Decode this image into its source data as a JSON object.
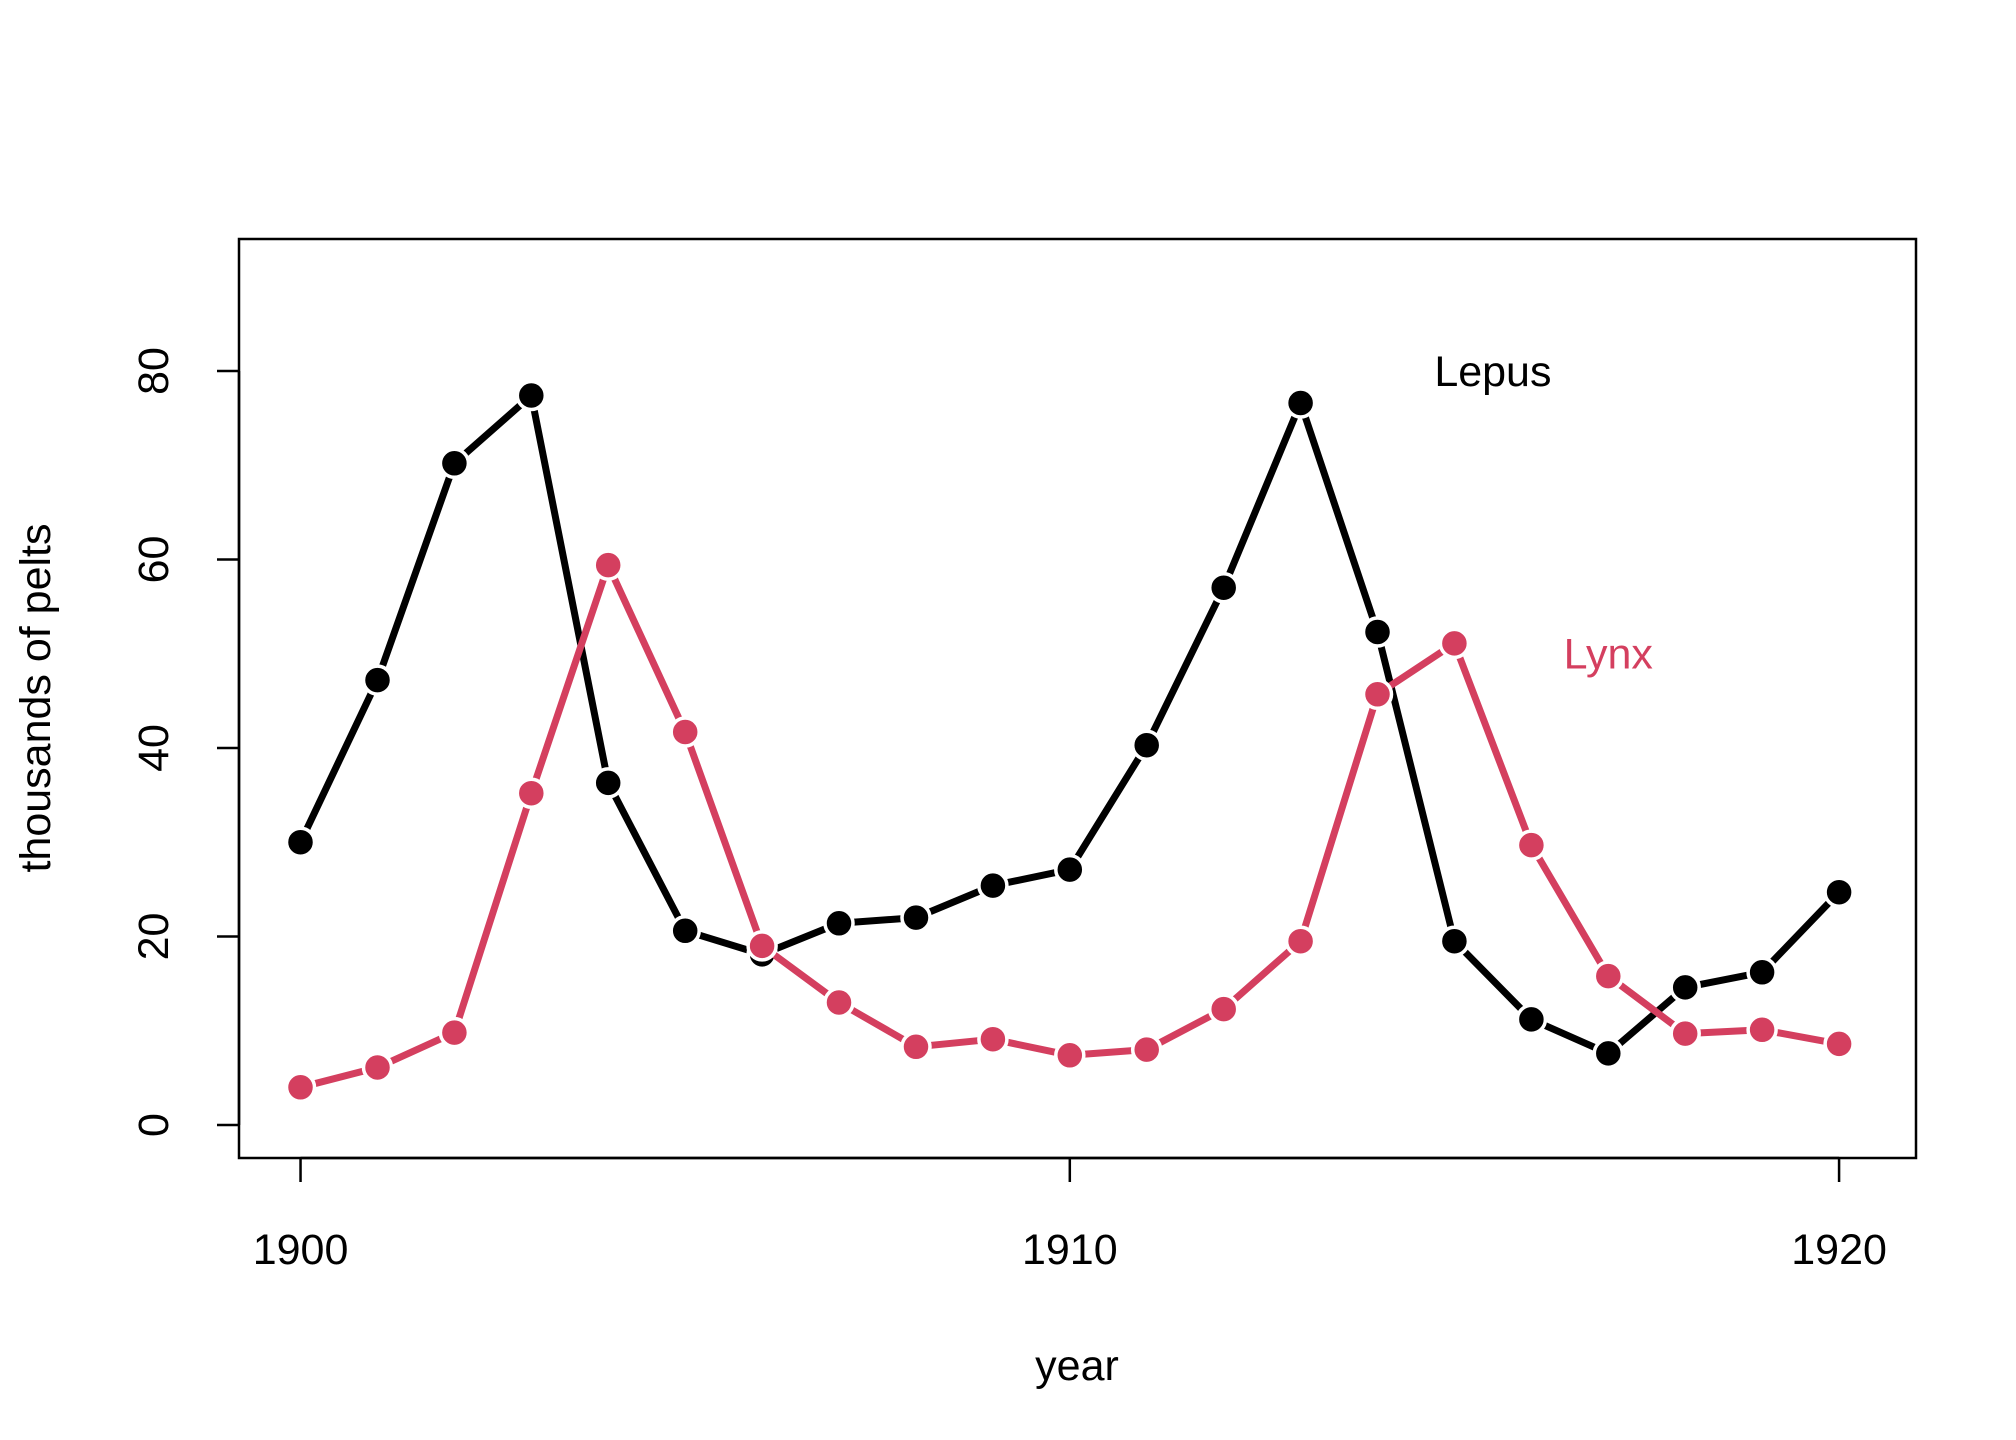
{
  "chart_data": {
    "type": "line",
    "title": "",
    "xlabel": "year",
    "ylabel": "thousands of pelts",
    "xlim": [
      1899.2,
      1921.0
    ],
    "ylim": [
      -3.5,
      94
    ],
    "x_ticks": [
      1900,
      1910,
      1920
    ],
    "y_ticks": [
      0,
      20,
      40,
      60,
      80
    ],
    "grid": false,
    "x": [
      1900,
      1901,
      1902,
      1903,
      1904,
      1905,
      1906,
      1907,
      1908,
      1909,
      1910,
      1911,
      1912,
      1913,
      1914,
      1915,
      1916,
      1917,
      1918,
      1919,
      1920
    ],
    "series": [
      {
        "name": "Lepus",
        "color": "#000000",
        "values": [
          30.0,
          47.2,
          70.2,
          77.4,
          36.3,
          20.6,
          18.1,
          21.4,
          22.0,
          25.4,
          27.1,
          40.3,
          57.0,
          76.6,
          52.3,
          19.5,
          11.2,
          7.6,
          14.6,
          16.2,
          24.7
        ]
      },
      {
        "name": "Lynx",
        "color": "#D43F5F",
        "values": [
          4.0,
          6.1,
          9.8,
          35.2,
          59.4,
          41.7,
          19.0,
          13.0,
          8.3,
          9.1,
          7.4,
          8.0,
          12.3,
          19.5,
          45.7,
          51.1,
          29.7,
          15.8,
          9.7,
          10.1,
          8.6
        ]
      }
    ],
    "annotations": [
      {
        "text": "Lepus",
        "x": 1915.5,
        "y": 80,
        "color": "#000000"
      },
      {
        "text": "Lynx",
        "x": 1917.0,
        "y": 50,
        "color": "#D43F5F"
      }
    ]
  }
}
